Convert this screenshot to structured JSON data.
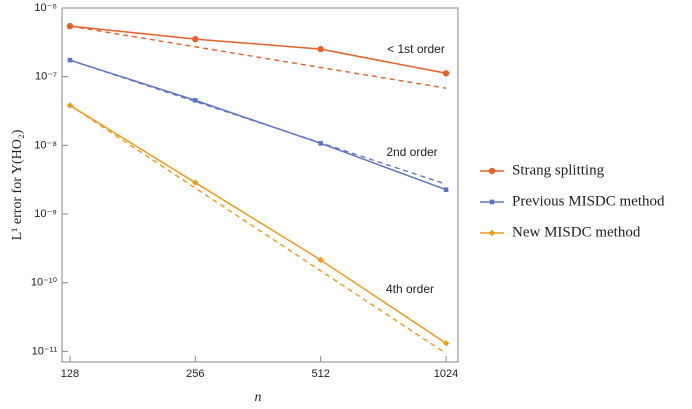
{
  "chart_data": {
    "type": "line",
    "xlabel": "n",
    "ylabel": "L¹ error for Y(HO₂)",
    "x": [
      128,
      256,
      512,
      1024
    ],
    "xlim": [
      122.5,
      1094
    ],
    "xticks": [
      128,
      256,
      512,
      1024
    ],
    "xscale": "log",
    "ylim": [
      7e-12,
      1e-06
    ],
    "yscale": "log",
    "yticks": [
      {
        "value": 1e-06,
        "label": "10⁻⁶"
      },
      {
        "value": 1e-07,
        "label": "10⁻⁷"
      },
      {
        "value": 1e-08,
        "label": "10⁻⁸"
      },
      {
        "value": 1e-09,
        "label": "10⁻⁹"
      },
      {
        "value": 1e-10,
        "label": "10⁻¹⁰"
      },
      {
        "value": 1e-11,
        "label": "10⁻¹¹"
      }
    ],
    "reference_x": [
      128,
      1024
    ],
    "legend": "right",
    "series": [
      {
        "name": "Strang splitting",
        "color": "#e5602a",
        "marker": "circle",
        "values": [
          5.45e-07,
          3.52e-07,
          2.52e-07,
          1.12e-07
        ],
        "reference_values": [
          5.45e-07,
          6.8e-08
        ],
        "annotation": "< 1st order"
      },
      {
        "name": "Previous MISDC method",
        "color": "#5f76c6",
        "marker": "square",
        "values": [
          1.74e-07,
          4.52e-08,
          1.07e-08,
          2.26e-09
        ],
        "reference_values": [
          1.74e-07,
          2.72e-09
        ],
        "annotation": "2nd order"
      },
      {
        "name": "New MISDC method",
        "color": "#f09a1c",
        "marker": "diamond",
        "values": [
          3.82e-08,
          2.86e-09,
          2.14e-10,
          1.31e-11
        ],
        "reference_values": [
          3.82e-08,
          9.3e-12
        ],
        "annotation": "4th order"
      }
    ]
  }
}
